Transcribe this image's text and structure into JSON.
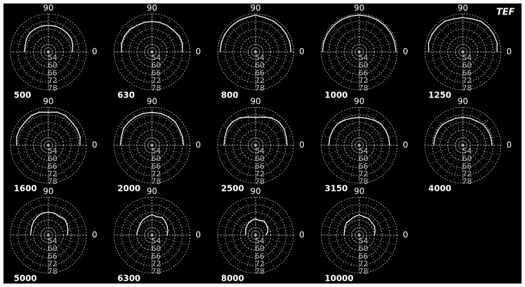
{
  "logo": "TEF",
  "chart_data": [
    {
      "type": "polar",
      "title": "500",
      "theta": [
        0,
        15,
        30,
        45,
        60,
        75,
        90,
        105,
        120,
        135,
        150,
        165,
        180
      ],
      "values": [
        67,
        68,
        69,
        69,
        69,
        69,
        69,
        69,
        69,
        69,
        68,
        67,
        67
      ],
      "rlim": [
        48,
        78
      ],
      "rticks": [
        54,
        60,
        66,
        72,
        78
      ],
      "theta_ticks": [
        90,
        0
      ]
    },
    {
      "type": "polar",
      "title": "630",
      "theta": [
        0,
        15,
        30,
        45,
        60,
        75,
        90,
        105,
        120,
        135,
        150,
        165,
        180
      ],
      "values": [
        72,
        73,
        73,
        72,
        72,
        72,
        72,
        72,
        72,
        73,
        73,
        73,
        72
      ],
      "rlim": [
        48,
        78
      ],
      "rticks": [
        54,
        60,
        66,
        72,
        78
      ],
      "theta_ticks": [
        90,
        0
      ]
    },
    {
      "type": "polar",
      "title": "800",
      "theta": [
        0,
        15,
        30,
        45,
        60,
        75,
        90,
        105,
        120,
        135,
        150,
        165,
        180
      ],
      "values": [
        76,
        76,
        76,
        76,
        76,
        76,
        77,
        76,
        76,
        76,
        76,
        76,
        76
      ],
      "rlim": [
        48,
        78
      ],
      "rticks": [
        54,
        60,
        66,
        72,
        78
      ],
      "theta_ticks": [
        90,
        0
      ]
    },
    {
      "type": "polar",
      "title": "1000",
      "theta": [
        0,
        15,
        30,
        45,
        60,
        75,
        90,
        105,
        120,
        135,
        150,
        165,
        180
      ],
      "values": [
        77,
        77,
        77,
        77,
        77,
        77,
        77,
        77,
        77,
        77,
        77,
        77,
        77
      ],
      "rlim": [
        48,
        78
      ],
      "rticks": [
        54,
        60,
        66,
        72,
        78
      ],
      "theta_ticks": [
        90,
        0
      ]
    },
    {
      "type": "polar",
      "title": "1250",
      "theta": [
        0,
        15,
        30,
        45,
        60,
        75,
        90,
        105,
        120,
        135,
        150,
        165,
        180
      ],
      "values": [
        75,
        76,
        76,
        76,
        76,
        75,
        75,
        75,
        76,
        76,
        76,
        76,
        75
      ],
      "rlim": [
        48,
        78
      ],
      "rticks": [
        54,
        60,
        66,
        72,
        78
      ],
      "theta_ticks": [
        90,
        0
      ]
    },
    {
      "type": "polar",
      "title": "1600",
      "theta": [
        0,
        15,
        30,
        45,
        60,
        75,
        90,
        105,
        120,
        135,
        150,
        165,
        180
      ],
      "values": [
        73,
        74,
        74,
        74,
        75,
        75,
        74,
        75,
        75,
        74,
        74,
        74,
        73
      ],
      "rlim": [
        48,
        78
      ],
      "rticks": [
        54,
        60,
        66,
        72,
        78
      ],
      "theta_ticks": [
        90,
        0
      ]
    },
    {
      "type": "polar",
      "title": "2000",
      "theta": [
        0,
        15,
        30,
        45,
        60,
        75,
        90,
        105,
        120,
        135,
        150,
        165,
        180
      ],
      "values": [
        73,
        73,
        73,
        74,
        74,
        74,
        74,
        74,
        74,
        74,
        74,
        73,
        73
      ],
      "rlim": [
        48,
        78
      ],
      "rticks": [
        54,
        60,
        66,
        72,
        78
      ],
      "theta_ticks": [
        90,
        0
      ]
    },
    {
      "type": "polar",
      "title": "2500",
      "theta": [
        0,
        15,
        30,
        45,
        60,
        75,
        90,
        105,
        120,
        135,
        150,
        165,
        180
      ],
      "values": [
        73,
        73,
        74,
        74,
        73,
        71,
        70,
        71,
        73,
        74,
        74,
        73,
        73
      ],
      "rlim": [
        48,
        78
      ],
      "rticks": [
        54,
        60,
        66,
        72,
        78
      ],
      "theta_ticks": [
        90,
        0
      ]
    },
    {
      "type": "polar",
      "title": "3150",
      "theta": [
        0,
        15,
        30,
        45,
        60,
        75,
        90,
        105,
        120,
        135,
        150,
        165,
        180
      ],
      "values": [
        72,
        72,
        72,
        72,
        71,
        70,
        70,
        70,
        71,
        72,
        72,
        72,
        72
      ],
      "rlim": [
        48,
        78
      ],
      "rticks": [
        54,
        60,
        66,
        72,
        78
      ],
      "theta_ticks": [
        90,
        0
      ]
    },
    {
      "type": "polar",
      "title": "4000",
      "theta": [
        0,
        15,
        30,
        45,
        60,
        75,
        90,
        105,
        120,
        135,
        150,
        165,
        180
      ],
      "values": [
        71,
        71,
        71,
        71,
        70,
        70,
        70,
        70,
        70,
        71,
        71,
        71,
        71
      ],
      "rlim": [
        48,
        78
      ],
      "rticks": [
        54,
        60,
        66,
        72,
        78
      ],
      "theta_ticks": [
        90,
        0
      ]
    },
    {
      "type": "polar",
      "title": "5000",
      "theta": [
        0,
        15,
        30,
        45,
        60,
        75,
        90,
        105,
        120,
        135,
        150,
        165,
        180
      ],
      "values": [
        63,
        64,
        65,
        66,
        65,
        66,
        66,
        66,
        65,
        64,
        63,
        62,
        62
      ],
      "rlim": [
        48,
        78
      ],
      "rticks": [
        54,
        60,
        66,
        72,
        78
      ],
      "theta_ticks": [
        90,
        0
      ]
    },
    {
      "type": "polar",
      "title": "6300",
      "theta": [
        0,
        15,
        30,
        45,
        60,
        75,
        90,
        105,
        120,
        135,
        150,
        165,
        180
      ],
      "values": [
        60,
        61,
        62,
        63,
        64,
        63,
        64,
        63,
        62,
        61,
        60,
        60,
        60
      ],
      "rlim": [
        48,
        78
      ],
      "rticks": [
        54,
        60,
        66,
        72,
        78
      ],
      "theta_ticks": [
        90,
        0
      ]
    },
    {
      "type": "polar",
      "title": "8000",
      "theta": [
        0,
        15,
        30,
        45,
        60,
        75,
        90,
        105,
        120,
        135,
        150,
        165,
        180
      ],
      "values": [
        56,
        58,
        59,
        60,
        61,
        60,
        61,
        60,
        59,
        58,
        57,
        56,
        56
      ],
      "rlim": [
        48,
        78
      ],
      "rticks": [
        54,
        60,
        66,
        72,
        78
      ],
      "theta_ticks": [
        90,
        0
      ]
    },
    {
      "type": "polar",
      "title": "10000",
      "theta": [
        0,
        15,
        30,
        45,
        60,
        75,
        90,
        105,
        120,
        135,
        150,
        165,
        180
      ],
      "values": [
        60,
        61,
        62,
        62,
        63,
        63,
        64,
        63,
        62,
        62,
        61,
        60,
        60
      ],
      "rlim": [
        48,
        78
      ],
      "rticks": [
        54,
        60,
        66,
        72,
        78
      ],
      "theta_ticks": [
        90,
        0
      ]
    }
  ]
}
